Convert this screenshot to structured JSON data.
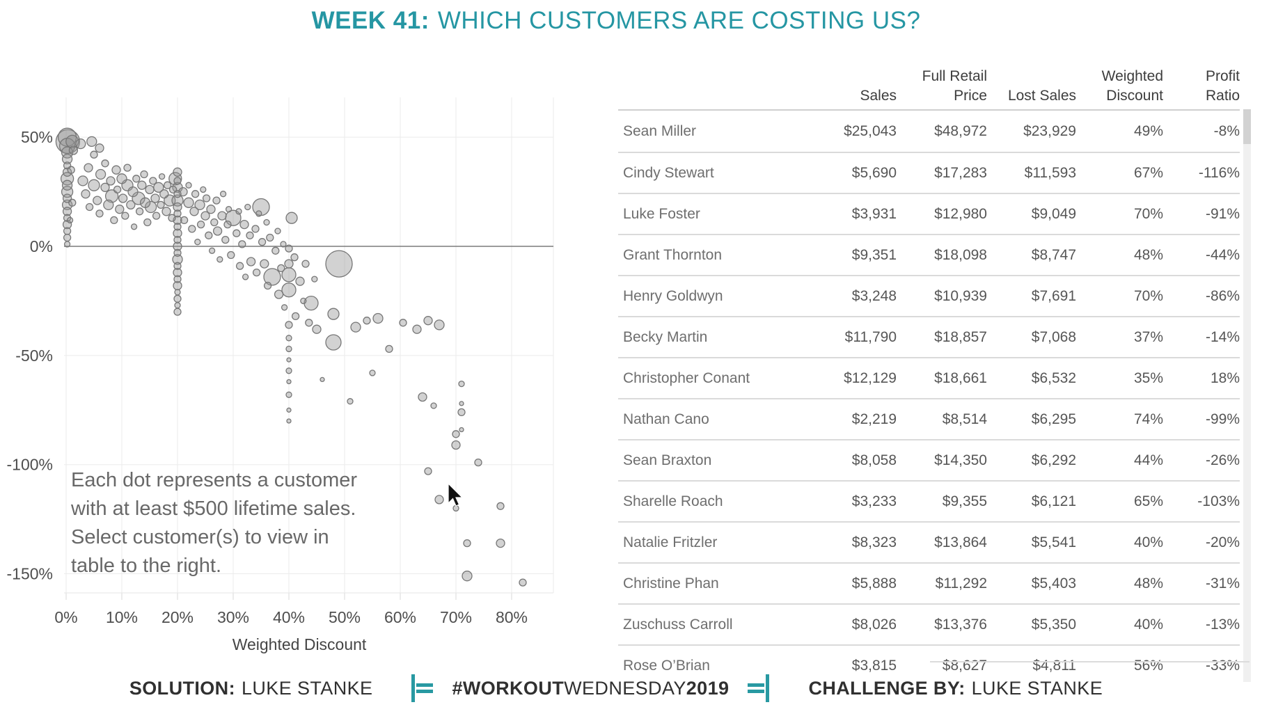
{
  "title": {
    "week": "WEEK 41:",
    "question": "WHICH CUSTOMERS ARE COSTING US?"
  },
  "colors": {
    "accent_teal": "#2596a3",
    "bubble_fill": "#949494",
    "bubble_stroke": "#767676",
    "grid": "#ebebeb",
    "zero_line": "#7a7a7a",
    "text_gray": "#686868",
    "table_text": "#565656"
  },
  "chart_data": {
    "type": "scatter",
    "title": "",
    "xlabel": "Weighted Discount",
    "ylabel": "Profit Ratio",
    "xlim": [
      0,
      87
    ],
    "ylim": [
      -161,
      68
    ],
    "grid": true,
    "x_ticks": [
      {
        "v": 0,
        "label": "0%"
      },
      {
        "v": 10,
        "label": "10%"
      },
      {
        "v": 20,
        "label": "20%"
      },
      {
        "v": 30,
        "label": "30%"
      },
      {
        "v": 40,
        "label": "40%"
      },
      {
        "v": 50,
        "label": "50%"
      },
      {
        "v": 60,
        "label": "60%"
      },
      {
        "v": 70,
        "label": "70%"
      },
      {
        "v": 80,
        "label": "80%"
      }
    ],
    "y_ticks": [
      {
        "v": 50,
        "label": "50%"
      },
      {
        "v": 0,
        "label": "0%"
      },
      {
        "v": -50,
        "label": "-50%"
      },
      {
        "v": -100,
        "label": "-100%"
      },
      {
        "v": -150,
        "label": "-150%"
      }
    ],
    "note_lines": [
      "Each dot represents a customer",
      "with at least $500 lifetime sales.",
      "Select customer(s) to view in",
      "table to the right."
    ],
    "points_format": [
      "weighted_discount_pct",
      "profit_ratio_pct",
      "radius_px"
    ],
    "points": [
      [
        0.2,
        50,
        13
      ],
      [
        0.3,
        48,
        17
      ],
      [
        0.2,
        46,
        11
      ],
      [
        0.2,
        43,
        8
      ],
      [
        0.2,
        40,
        7
      ],
      [
        0.2,
        37,
        5
      ],
      [
        0.2,
        34,
        6
      ],
      [
        0.2,
        31,
        9
      ],
      [
        0.2,
        28,
        7
      ],
      [
        0.2,
        25,
        8
      ],
      [
        0.2,
        22,
        6
      ],
      [
        0.2,
        19,
        7
      ],
      [
        0.2,
        16,
        6
      ],
      [
        0.2,
        13,
        5
      ],
      [
        0.2,
        10,
        6
      ],
      [
        0.2,
        7,
        5
      ],
      [
        0.2,
        4,
        5
      ],
      [
        0.2,
        1,
        4
      ],
      [
        1.1,
        48,
        9
      ],
      [
        1.3,
        44,
        6
      ],
      [
        0.9,
        35,
        5
      ],
      [
        1.1,
        20,
        5
      ],
      [
        0.7,
        12,
        4
      ],
      [
        2.6,
        47,
        7
      ],
      [
        4.6,
        48,
        7
      ],
      [
        6,
        45,
        6
      ],
      [
        3,
        30,
        7
      ],
      [
        3.5,
        24,
        6
      ],
      [
        4,
        36,
        6
      ],
      [
        4.2,
        18,
        5
      ],
      [
        5,
        42,
        5
      ],
      [
        5,
        28,
        8
      ],
      [
        5.6,
        21,
        6
      ],
      [
        6.2,
        33,
        7
      ],
      [
        6,
        15,
        5
      ],
      [
        7,
        38,
        5
      ],
      [
        7,
        27,
        6
      ],
      [
        7.6,
        19,
        7
      ],
      [
        8,
        30,
        6
      ],
      [
        8.2,
        23,
        9
      ],
      [
        8.6,
        12,
        5
      ],
      [
        9,
        35,
        6
      ],
      [
        9.2,
        26,
        5
      ],
      [
        9.6,
        17,
        6
      ],
      [
        10,
        31,
        7
      ],
      [
        10.2,
        22,
        6
      ],
      [
        10.6,
        14,
        5
      ],
      [
        11,
        28,
        8
      ],
      [
        11,
        36,
        5
      ],
      [
        11.6,
        19,
        6
      ],
      [
        12,
        25,
        7
      ],
      [
        12.2,
        9,
        4
      ],
      [
        12.6,
        31,
        5
      ],
      [
        13,
        22,
        9
      ],
      [
        13.2,
        16,
        5
      ],
      [
        13.6,
        28,
        6
      ],
      [
        14,
        33,
        5
      ],
      [
        14.2,
        20,
        7
      ],
      [
        14.6,
        11,
        5
      ],
      [
        15,
        26,
        6
      ],
      [
        15.2,
        18,
        8
      ],
      [
        15.6,
        30,
        5
      ],
      [
        16,
        22,
        6
      ],
      [
        16.2,
        14,
        5
      ],
      [
        16.6,
        27,
        7
      ],
      [
        17,
        19,
        5
      ],
      [
        17.2,
        32,
        4
      ],
      [
        17.6,
        24,
        6
      ],
      [
        18,
        16,
        6
      ],
      [
        18.2,
        28,
        5
      ],
      [
        18.6,
        21,
        8
      ],
      [
        19,
        13,
        5
      ],
      [
        19.2,
        26,
        5
      ],
      [
        19.6,
        31,
        9
      ],
      [
        20,
        34,
        6
      ],
      [
        20,
        30,
        5
      ],
      [
        20,
        27,
        7
      ],
      [
        20,
        24,
        5
      ],
      [
        20,
        21,
        8
      ],
      [
        20,
        18,
        6
      ],
      [
        20,
        15,
        5
      ],
      [
        20,
        12,
        6
      ],
      [
        20,
        9,
        5
      ],
      [
        20,
        6,
        6
      ],
      [
        20,
        3,
        5
      ],
      [
        20,
        0,
        6
      ],
      [
        20,
        -3,
        5
      ],
      [
        20,
        -6,
        7
      ],
      [
        20,
        -9,
        5
      ],
      [
        20,
        -12,
        6
      ],
      [
        20,
        -15,
        5
      ],
      [
        20,
        -18,
        6
      ],
      [
        20,
        -21,
        4
      ],
      [
        20,
        -24,
        5
      ],
      [
        20,
        -27,
        4
      ],
      [
        20,
        -30,
        5
      ],
      [
        21,
        25,
        6
      ],
      [
        21.2,
        12,
        5
      ],
      [
        22,
        20,
        7
      ],
      [
        22,
        28,
        4
      ],
      [
        22.6,
        8,
        5
      ],
      [
        23,
        16,
        6
      ],
      [
        23.2,
        24,
        5
      ],
      [
        23.6,
        2,
        4
      ],
      [
        24,
        19,
        7
      ],
      [
        24.2,
        10,
        5
      ],
      [
        24.6,
        26,
        4
      ],
      [
        25,
        14,
        6
      ],
      [
        25.2,
        22,
        5
      ],
      [
        25.6,
        5,
        5
      ],
      [
        26,
        17,
        6
      ],
      [
        26.2,
        -2,
        4
      ],
      [
        26.6,
        11,
        5
      ],
      [
        27,
        21,
        5
      ],
      [
        27.2,
        7,
        6
      ],
      [
        27.6,
        -6,
        4
      ],
      [
        28,
        14,
        6
      ],
      [
        28.2,
        24,
        4
      ],
      [
        28.6,
        3,
        5
      ],
      [
        29,
        10,
        5
      ],
      [
        29.2,
        17,
        4
      ],
      [
        29.6,
        -4,
        5
      ],
      [
        30,
        13,
        11
      ],
      [
        30.6,
        6,
        5
      ],
      [
        31,
        16,
        4
      ],
      [
        31.2,
        -9,
        5
      ],
      [
        31.6,
        1,
        5
      ],
      [
        32,
        10,
        6
      ],
      [
        32.2,
        -14,
        4
      ],
      [
        32.6,
        18,
        4
      ],
      [
        33,
        5,
        5
      ],
      [
        33.2,
        -7,
        6
      ],
      [
        34,
        8,
        5
      ],
      [
        34.2,
        -12,
        5
      ],
      [
        34.6,
        15,
        4
      ],
      [
        35,
        18,
        12
      ],
      [
        35.2,
        2,
        5
      ],
      [
        35.6,
        -8,
        6
      ],
      [
        36,
        11,
        4
      ],
      [
        36.2,
        -18,
        5
      ],
      [
        36.6,
        4,
        5
      ],
      [
        37,
        -14,
        12
      ],
      [
        37.6,
        -2,
        5
      ],
      [
        38,
        7,
        4
      ],
      [
        38.2,
        -22,
        6
      ],
      [
        38.6,
        -10,
        5
      ],
      [
        39,
        1,
        4
      ],
      [
        39.2,
        -28,
        4
      ],
      [
        40.5,
        13,
        8
      ],
      [
        41,
        -5,
        5
      ],
      [
        41.2,
        -32,
        5
      ],
      [
        42,
        -16,
        6
      ],
      [
        42.6,
        -25,
        4
      ],
      [
        43,
        -8,
        5
      ],
      [
        43.6,
        -35,
        5
      ],
      [
        44,
        -26,
        10
      ],
      [
        44.6,
        -15,
        4
      ],
      [
        45,
        -38,
        6
      ],
      [
        40,
        -1,
        5
      ],
      [
        40,
        -8,
        6
      ],
      [
        40,
        -13,
        10
      ],
      [
        40,
        -20,
        10
      ],
      [
        40,
        -36,
        5
      ],
      [
        40,
        -42,
        4
      ],
      [
        40,
        -47,
        4
      ],
      [
        40,
        -52,
        3
      ],
      [
        40,
        -57,
        4
      ],
      [
        40,
        -62,
        3
      ],
      [
        40,
        -68,
        4
      ],
      [
        40,
        -75,
        3
      ],
      [
        40,
        -80,
        3
      ],
      [
        49,
        -8,
        19
      ],
      [
        48,
        -44,
        11
      ],
      [
        48,
        -31,
        8
      ],
      [
        46,
        -61,
        3
      ],
      [
        51,
        -71,
        4
      ],
      [
        55,
        -58,
        4
      ],
      [
        52,
        -37,
        7
      ],
      [
        54,
        -34,
        5
      ],
      [
        56,
        -33,
        7
      ],
      [
        58,
        -47,
        5
      ],
      [
        60.5,
        -35,
        5
      ],
      [
        63,
        -38,
        6
      ],
      [
        65,
        -34,
        6
      ],
      [
        67,
        -36,
        7
      ],
      [
        66,
        -73,
        4
      ],
      [
        64,
        -69,
        6
      ],
      [
        71,
        -63,
        4
      ],
      [
        71,
        -72,
        3
      ],
      [
        71,
        -76,
        5
      ],
      [
        71,
        -84,
        3
      ],
      [
        65,
        -103,
        5
      ],
      [
        67,
        -116,
        6
      ],
      [
        70,
        -86,
        5
      ],
      [
        70,
        -91,
        6
      ],
      [
        74,
        -99,
        5
      ],
      [
        70,
        -120,
        4
      ],
      [
        78,
        -119,
        5
      ],
      [
        72,
        -136,
        5
      ],
      [
        78,
        -136,
        6
      ],
      [
        72,
        -151,
        7
      ],
      [
        82,
        -154,
        5
      ]
    ]
  },
  "table": {
    "columns": [
      {
        "line1": "",
        "line2": ""
      },
      {
        "line1": "",
        "line2": "Sales"
      },
      {
        "line1": "Full Retail",
        "line2": "Price"
      },
      {
        "line1": "",
        "line2": "Lost Sales"
      },
      {
        "line1": "Weighted",
        "line2": "Discount"
      },
      {
        "line1": "Profit",
        "line2": "Ratio"
      }
    ],
    "rows": [
      {
        "name": "Sean Miller",
        "sales": "$25,043",
        "retail": "$48,972",
        "lost": "$23,929",
        "discount": "49%",
        "ratio": "-8%"
      },
      {
        "name": "Cindy Stewart",
        "sales": "$5,690",
        "retail": "$17,283",
        "lost": "$11,593",
        "discount": "67%",
        "ratio": "-116%"
      },
      {
        "name": "Luke Foster",
        "sales": "$3,931",
        "retail": "$12,980",
        "lost": "$9,049",
        "discount": "70%",
        "ratio": "-91%"
      },
      {
        "name": "Grant Thornton",
        "sales": "$9,351",
        "retail": "$18,098",
        "lost": "$8,747",
        "discount": "48%",
        "ratio": "-44%"
      },
      {
        "name": "Henry Goldwyn",
        "sales": "$3,248",
        "retail": "$10,939",
        "lost": "$7,691",
        "discount": "70%",
        "ratio": "-86%"
      },
      {
        "name": "Becky Martin",
        "sales": "$11,790",
        "retail": "$18,857",
        "lost": "$7,068",
        "discount": "37%",
        "ratio": "-14%"
      },
      {
        "name": "Christopher Conant",
        "sales": "$12,129",
        "retail": "$18,661",
        "lost": "$6,532",
        "discount": "35%",
        "ratio": "18%"
      },
      {
        "name": "Nathan Cano",
        "sales": "$2,219",
        "retail": "$8,514",
        "lost": "$6,295",
        "discount": "74%",
        "ratio": "-99%"
      },
      {
        "name": "Sean Braxton",
        "sales": "$8,058",
        "retail": "$14,350",
        "lost": "$6,292",
        "discount": "44%",
        "ratio": "-26%"
      },
      {
        "name": "Sharelle Roach",
        "sales": "$3,233",
        "retail": "$9,355",
        "lost": "$6,121",
        "discount": "65%",
        "ratio": "-103%"
      },
      {
        "name": "Natalie Fritzler",
        "sales": "$8,323",
        "retail": "$13,864",
        "lost": "$5,541",
        "discount": "40%",
        "ratio": "-20%"
      },
      {
        "name": "Christine Phan",
        "sales": "$5,888",
        "retail": "$11,292",
        "lost": "$5,403",
        "discount": "48%",
        "ratio": "-31%"
      },
      {
        "name": "Zuschuss Carroll",
        "sales": "$8,026",
        "retail": "$13,376",
        "lost": "$5,350",
        "discount": "40%",
        "ratio": "-13%"
      },
      {
        "name": "Rose O’Brian",
        "sales": "$3,815",
        "retail": "$8,627",
        "lost": "$4,811",
        "discount": "56%",
        "ratio": "-33%"
      }
    ]
  },
  "footer": {
    "solution_label": "SOLUTION:",
    "solution_value": "LUKE STANKE",
    "hashtag_bold": "#WORKOUT",
    "hashtag_mid": "WEDNESDAY",
    "hashtag_year": "2019",
    "challenge_label": "CHALLENGE BY:",
    "challenge_value": "LUKE STANKE"
  }
}
